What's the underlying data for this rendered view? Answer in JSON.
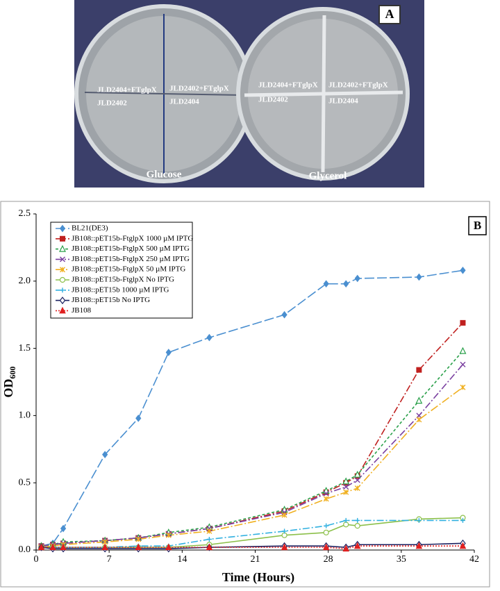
{
  "panel_a": {
    "label": "A",
    "plates": [
      {
        "medium": "Glucose",
        "top_left": "JLD2404+FTglpX",
        "top_right": "JLD2402+FTglpX",
        "bottom_left": "JLD2402",
        "bottom_right": "JLD2404"
      },
      {
        "medium": "Glycerol",
        "top_left": "JLD2404+FTglpX",
        "top_right": "JLD2402+FTglpX",
        "bottom_left": "JLD2402",
        "bottom_right": "JLD2404"
      }
    ]
  },
  "chart_data": {
    "type": "line",
    "panel_label": "B",
    "xlabel": "Time (Hours)",
    "ylabel": "OD",
    "ylabel_sub": "600",
    "x": [
      0.5,
      1.6,
      2.6,
      6.6,
      9.8,
      12.7,
      16.6,
      23.8,
      27.8,
      29.7,
      30.8,
      36.7,
      40.9
    ],
    "xlim": [
      0,
      42
    ],
    "xticks": [
      0,
      7,
      14,
      21,
      28,
      35,
      42
    ],
    "ylim": [
      0,
      2.5
    ],
    "yticks": [
      {
        "value": 0,
        "label": "0.0"
      },
      0.5,
      {
        "value": 1,
        "label": "1.0"
      },
      1.5,
      {
        "value": 2,
        "label": "2.0"
      },
      2.5
    ],
    "legend": "top-left",
    "series": [
      {
        "name": "BL21(DE3)",
        "color": "#4a8fd0",
        "dash": "14 4",
        "marker": "diamond",
        "values": [
          0.03,
          0.05,
          0.16,
          0.71,
          0.98,
          1.47,
          1.58,
          1.75,
          1.98,
          1.98,
          2.02,
          2.03,
          2.08
        ]
      },
      {
        "name": "JB108::pET15b-FtglpX 1000 µM IPTG",
        "color": "#c0201f",
        "dash": "10 3 2 3",
        "marker": "square",
        "values": [
          0.03,
          0.04,
          0.05,
          0.07,
          0.09,
          0.12,
          0.16,
          0.29,
          0.43,
          0.5,
          0.55,
          1.34,
          1.69
        ]
      },
      {
        "name": "JB108::pET15b-FtglpX 500 µM IPTG",
        "color": "#2aa04a",
        "dash": "4 3",
        "marker": "triangle-open",
        "values": [
          0.03,
          0.04,
          0.06,
          0.07,
          0.09,
          0.13,
          0.17,
          0.3,
          0.44,
          0.51,
          0.56,
          1.11,
          1.48
        ]
      },
      {
        "name": "JB108::pET15b-FtglpX 250 µM IPTG",
        "color": "#7a3fa0",
        "dash": "10 3 2 3",
        "marker": "x",
        "values": [
          0.03,
          0.04,
          0.05,
          0.07,
          0.09,
          0.12,
          0.16,
          0.28,
          0.42,
          0.47,
          0.52,
          1.0,
          1.38
        ]
      },
      {
        "name": "JB108::pET15b-FtglpX 50 µM IPTG",
        "color": "#f0b020",
        "dash": "12 3 2 3",
        "marker": "star",
        "values": [
          0.02,
          0.03,
          0.04,
          0.06,
          0.08,
          0.11,
          0.14,
          0.26,
          0.38,
          0.43,
          0.46,
          0.97,
          1.21
        ]
      },
      {
        "name": "JB108::pET15b-FtglpX No IPTG",
        "color": "#8cc04a",
        "dash": "",
        "marker": "circle-open",
        "values": [
          0.02,
          0.02,
          0.02,
          0.02,
          0.02,
          0.02,
          0.04,
          0.11,
          0.13,
          0.19,
          0.18,
          0.23,
          0.24
        ]
      },
      {
        "name": "JB108::pET15b 1000 µM IPTG",
        "color": "#30b0e0",
        "dash": "10 3 2 3",
        "marker": "plus",
        "values": [
          0.02,
          0.02,
          0.02,
          0.02,
          0.03,
          0.03,
          0.08,
          0.14,
          0.18,
          0.22,
          0.22,
          0.22,
          0.22
        ]
      },
      {
        "name": "JB108::pET15b No IPTG",
        "color": "#1a2060",
        "dash": "",
        "marker": "diamond-open",
        "values": [
          0.02,
          0.01,
          0.01,
          0.01,
          0.01,
          0.01,
          0.02,
          0.03,
          0.03,
          0.02,
          0.04,
          0.04,
          0.05
        ]
      },
      {
        "name": "JB108",
        "color": "#e02020",
        "dash": "2 2",
        "marker": "triangle",
        "values": [
          0.02,
          0.02,
          0.02,
          0.02,
          0.02,
          0.02,
          0.02,
          0.02,
          0.02,
          0.01,
          0.03,
          0.03,
          0.03
        ]
      }
    ]
  }
}
